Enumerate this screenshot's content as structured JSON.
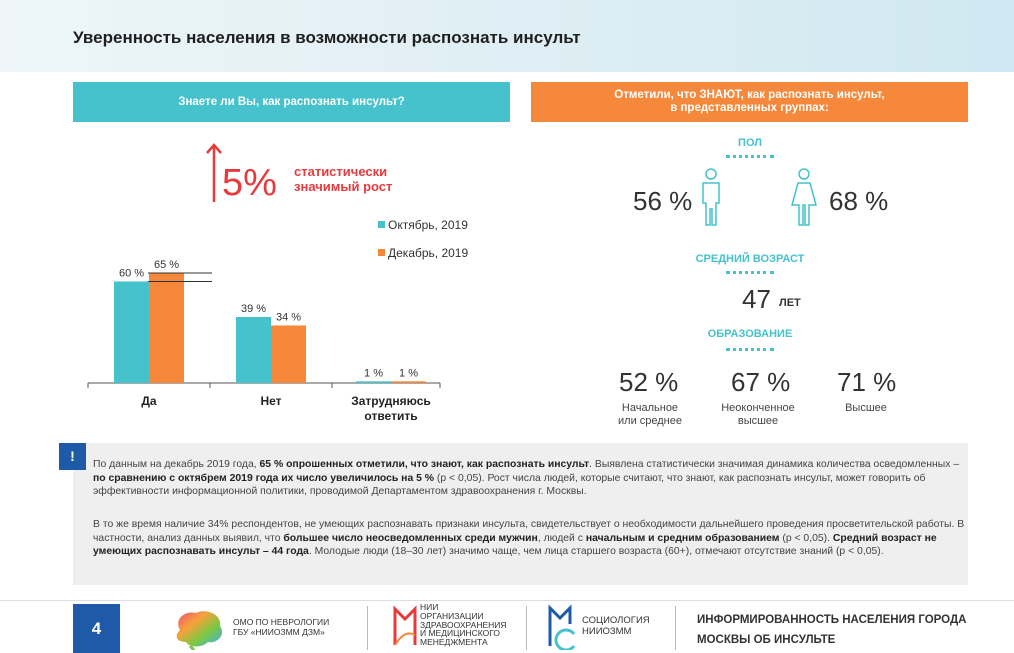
{
  "header": {
    "title": "Уверенность населения в возможности распознать инсульт"
  },
  "left_panel": {
    "title": "Знаете ли Вы, как распознать инсульт?"
  },
  "right_panel": {
    "title_line1": "Отметили, что ЗНАЮТ, как распознать инсульт,",
    "title_line2": "в представленных группах:"
  },
  "annotation": {
    "value": "5%",
    "line1": "статистически",
    "line2": "значимый рост"
  },
  "colors": {
    "teal": "#45c2cc",
    "orange": "#f5883a",
    "red": "#e63a3d",
    "navy": "#1f5aa8"
  },
  "chart_data": {
    "type": "bar",
    "categories": [
      "Да",
      "Нет",
      "Затрудняюсь ответить"
    ],
    "series": [
      {
        "name": "Октябрь, 2019",
        "values": [
          60,
          39,
          1
        ],
        "labels": [
          "60 %",
          "39 %",
          "1 %"
        ],
        "color": "#45c2cc"
      },
      {
        "name": "Декабрь, 2019",
        "values": [
          65,
          34,
          1
        ],
        "labels": [
          "65 %",
          "34 %",
          "1 %"
        ],
        "color": "#f5883a"
      }
    ],
    "ylim": [
      0,
      70
    ],
    "grid": false,
    "legend_position": "right"
  },
  "right_stats": {
    "gender_title": "ПОЛ",
    "male_pct": "56 %",
    "female_pct": "68 %",
    "age_title": "СРЕДНИЙ ВОЗРАСТ",
    "age_value": "47",
    "age_unit": "ЛЕТ",
    "edu_title": "ОБРАЗОВАНИЕ",
    "edu": [
      {
        "pct": "52 %",
        "label1": "Начальное",
        "label2": "или среднее"
      },
      {
        "pct": "67 %",
        "label1": "Неоконченное",
        "label2": "высшее"
      },
      {
        "pct": "71 %",
        "label1": "Высшее",
        "label2": ""
      }
    ]
  },
  "info": {
    "badge": "!",
    "p1_a": "По данным на декабрь 2019 года, ",
    "p1_b": "65 % опрошенных отметили, что знают, как распознать инсульт",
    "p1_c": ". Выявлена статистически значимая динамика количества осведомленных – ",
    "p1_d": "по сравнению с октябрем 2019 года их число увеличилось на 5 %",
    "p1_e": " (р < 0,05). Рост числа людей, которые считают, что знают, как распознать инсульт, может говорить об эффективности информационной политики, проводимой Департаментом здравоохранения г. Москвы.",
    "p2_a": "В то же время наличие 34% респондентов, не умеющих распознавать признаки инсульта, свидетельствует о необходимости дальнейшего проведения просветительской работы. В частности, анализ данных выявил, что ",
    "p2_b": "большее число неосведомленных среди мужчин",
    "p2_c": ", людей с ",
    "p2_d": "начальным и средним образованием",
    "p2_e": " (р < 0,05). ",
    "p2_f": "Средний возраст не умеющих распознавать инсульт – 44 года",
    "p2_g": ". Молодые люди (18–30 лет) значимо чаще, чем лица старшего возраста (60+), отмечают отсутствие знаний (р < 0,05)."
  },
  "footer": {
    "page": "4",
    "org1_line1": "ОМО ПО НЕВРОЛОГИИ",
    "org1_line2": "ГБУ «НИИОЗММ ДЗМ»",
    "org2_line1": "НИИ",
    "org2_line2": "ОРГАНИЗАЦИИ",
    "org2_line3": "ЗДРАВООХРАНЕНИЯ",
    "org2_line4": "И МЕДИЦИНСКОГО",
    "org2_line5": "МЕНЕДЖМЕНТА",
    "org3_line1": "СОЦИОЛОГИЯ",
    "org3_line2": "НИИОЗММ",
    "title_line1": "ИНФОРМИРОВАННОСТЬ НАСЕЛЕНИЯ ГОРОДА",
    "title_line2": "МОСКВЫ ОБ ИНСУЛЬТЕ"
  }
}
